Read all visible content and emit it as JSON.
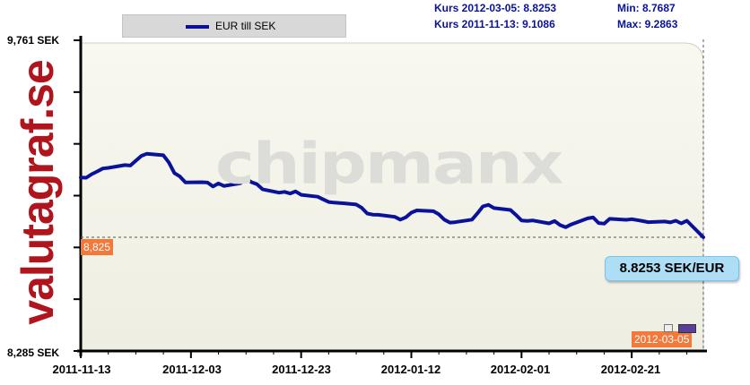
{
  "brand": {
    "text": "valutagraf.se",
    "color": "#b0141c"
  },
  "watermark": "chipmanx",
  "legend": {
    "label": "EUR till SEK",
    "color": "#0b129a"
  },
  "info": {
    "kurs_current": "Kurs 2012-03-05: 8.8253",
    "kurs_start": "Kurs 2011-11-13: 9.1086",
    "min": "Min: 8.7687",
    "max": "Max: 9.2863"
  },
  "reference": {
    "label": "8,825",
    "value": 8.825
  },
  "callout": "8.8253 SEK/EUR",
  "date_tag": "2012-03-05",
  "icons": [
    "print-icon",
    "flag-icon"
  ],
  "colors": {
    "line": "#0b129a",
    "plot_bg": "#f4f4ea",
    "tag": "#f4783a",
    "callout": "#aeddf6"
  },
  "chart_data": {
    "type": "line",
    "title": "",
    "xlabel": "",
    "ylabel": "",
    "ylim": [
      8.285,
      9.761
    ],
    "y_ticks": [
      {
        "value": 9.761,
        "label": "9,761 SEK"
      },
      {
        "value": 8.285,
        "label": "8,285 SEK"
      }
    ],
    "y_minor_ticks": [
      9.515,
      9.269,
      9.023,
      8.777,
      8.531
    ],
    "x_ticks": [
      "2011-11-13",
      "2011-12-03",
      "2011-12-23",
      "2012-01-12",
      "2012-02-01",
      "2012-02-21"
    ],
    "x_range": [
      "2011-11-13",
      "2012-03-05"
    ],
    "grid": false,
    "legend": "top-left",
    "series": [
      {
        "name": "EUR till SEK",
        "color": "#0b129a",
        "x": [
          "2011-11-13",
          "2011-11-14",
          "2011-11-15",
          "2011-11-16",
          "2011-11-17",
          "2011-11-18",
          "2011-11-21",
          "2011-11-22",
          "2011-11-23",
          "2011-11-24",
          "2011-11-25",
          "2011-11-28",
          "2011-11-29",
          "2011-11-30",
          "2011-12-01",
          "2011-12-02",
          "2011-12-05",
          "2011-12-06",
          "2011-12-07",
          "2011-12-08",
          "2011-12-09",
          "2011-12-12",
          "2011-12-13",
          "2011-12-14",
          "2011-12-15",
          "2011-12-16",
          "2011-12-19",
          "2011-12-20",
          "2011-12-21",
          "2011-12-22",
          "2011-12-23",
          "2011-12-26",
          "2011-12-27",
          "2011-12-28",
          "2011-12-29",
          "2011-12-30",
          "2012-01-02",
          "2012-01-03",
          "2012-01-04",
          "2012-01-05",
          "2012-01-06",
          "2012-01-09",
          "2012-01-10",
          "2012-01-11",
          "2012-01-12",
          "2012-01-13",
          "2012-01-16",
          "2012-01-17",
          "2012-01-18",
          "2012-01-19",
          "2012-01-20",
          "2012-01-23",
          "2012-01-24",
          "2012-01-25",
          "2012-01-26",
          "2012-01-27",
          "2012-01-30",
          "2012-01-31",
          "2012-02-01",
          "2012-02-02",
          "2012-02-03",
          "2012-02-06",
          "2012-02-07",
          "2012-02-08",
          "2012-02-09",
          "2012-02-10",
          "2012-02-13",
          "2012-02-14",
          "2012-02-15",
          "2012-02-16",
          "2012-02-17",
          "2012-02-20",
          "2012-02-21",
          "2012-02-22",
          "2012-02-23",
          "2012-02-24",
          "2012-02-27",
          "2012-02-28",
          "2012-02-29",
          "2012-03-01",
          "2012-03-02",
          "2012-03-05"
        ],
        "values": [
          9.109,
          9.108,
          9.125,
          9.138,
          9.152,
          9.155,
          9.168,
          9.166,
          9.189,
          9.212,
          9.222,
          9.215,
          9.18,
          9.13,
          9.114,
          9.086,
          9.087,
          9.085,
          9.067,
          9.081,
          9.069,
          9.082,
          9.104,
          9.087,
          9.077,
          9.053,
          9.037,
          9.041,
          9.033,
          9.043,
          9.027,
          9.018,
          9.005,
          8.993,
          8.99,
          8.988,
          8.981,
          8.965,
          8.938,
          8.933,
          8.932,
          8.922,
          8.909,
          8.92,
          8.942,
          8.953,
          8.949,
          8.934,
          8.909,
          8.895,
          8.897,
          8.909,
          8.939,
          8.972,
          8.979,
          8.964,
          8.955,
          8.931,
          8.905,
          8.903,
          8.905,
          8.891,
          8.902,
          8.883,
          8.873,
          8.886,
          8.915,
          8.919,
          8.893,
          8.89,
          8.913,
          8.908,
          8.911,
          8.907,
          8.902,
          8.897,
          8.9,
          8.896,
          8.904,
          8.891,
          8.904,
          8.825
        ]
      }
    ]
  }
}
